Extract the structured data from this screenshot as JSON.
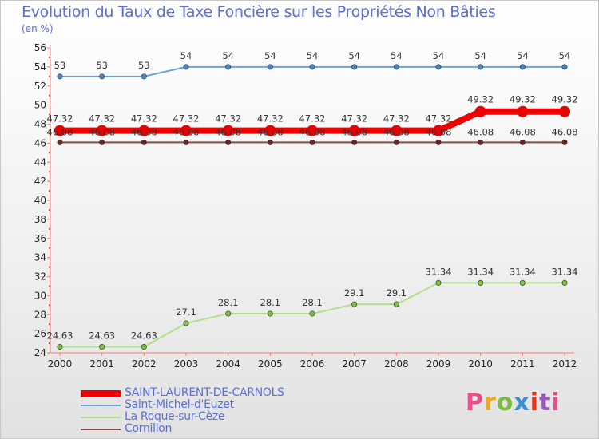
{
  "title": "Evolution du Taux de Taxe Foncière sur les Propriétés Non Bâties",
  "unit_label": "(en %)",
  "brand": {
    "text": "Proxiti",
    "colors": [
      "#e84e8a",
      "#f2a81d",
      "#7dbb3f",
      "#3a8fd8",
      "#e3321d",
      "#9b59b6",
      "#e84e8a"
    ]
  },
  "chart_data": {
    "type": "line",
    "title": "Evolution du Taux de Taxe Foncière sur les Propriétés Non Bâties",
    "ylabel": "(en %)",
    "xlabel": "",
    "ylim": [
      24,
      56
    ],
    "ytick_step": 2,
    "grid": false,
    "legend_position": "bottom-left",
    "categories": [
      "2000",
      "2001",
      "2002",
      "2003",
      "2004",
      "2005",
      "2006",
      "2007",
      "2008",
      "2009",
      "2010",
      "2011",
      "2012"
    ],
    "series": [
      {
        "name": "Saint-Michel-d'Euzet",
        "color": "#6fa0d6",
        "marker": "#3f86c9",
        "values": [
          53,
          53,
          53,
          54,
          54,
          54,
          54,
          54,
          54,
          54,
          54,
          54,
          54
        ],
        "labels": [
          "53",
          "53",
          "53",
          "54",
          "54",
          "54",
          "54",
          "54",
          "54",
          "54",
          "54",
          "54",
          "54"
        ]
      },
      {
        "name": "La Roque-sur-Cèze",
        "color": "#b3df8a",
        "marker": "#7dc142",
        "values": [
          24.63,
          24.63,
          24.63,
          27.1,
          28.1,
          28.1,
          28.1,
          29.1,
          29.1,
          31.34,
          31.34,
          31.34,
          31.34
        ],
        "labels": [
          "24.63",
          "24.63",
          "24.63",
          "27.1",
          "28.1",
          "28.1",
          "28.1",
          "29.1",
          "29.1",
          "31.34",
          "31.34",
          "31.34",
          "31.34"
        ]
      },
      {
        "name": "Cornillon",
        "color": "#8b4a4a",
        "marker": "#6a2424",
        "values": [
          46.08,
          46.08,
          46.08,
          46.08,
          46.08,
          46.08,
          46.08,
          46.08,
          46.08,
          46.08,
          46.08,
          46.08,
          46.08
        ],
        "labels": [
          "46.08",
          "46.08",
          "46.08",
          "46.08",
          "46.08",
          "46.08",
          "46.08",
          "46.08",
          "46.08",
          "46.08",
          "46.08",
          "46.08",
          "46.08"
        ]
      },
      {
        "name": "SAINT-LAURENT-DE-CARNOLS",
        "color": "#ee0000",
        "marker": "#ee0000",
        "highlight": true,
        "values": [
          47.32,
          47.32,
          47.32,
          47.32,
          47.32,
          47.32,
          47.32,
          47.32,
          47.32,
          47.32,
          49.32,
          49.32,
          49.32
        ],
        "labels": [
          "47.32",
          "47.32",
          "47.32",
          "47.32",
          "47.32",
          "47.32",
          "47.32",
          "47.32",
          "47.32",
          "47.32",
          "49.32",
          "49.32",
          "49.32"
        ]
      }
    ],
    "legend_order": [
      "SAINT-LAURENT-DE-CARNOLS",
      "Saint-Michel-d'Euzet",
      "La Roque-sur-Cèze",
      "Cornillon"
    ]
  }
}
